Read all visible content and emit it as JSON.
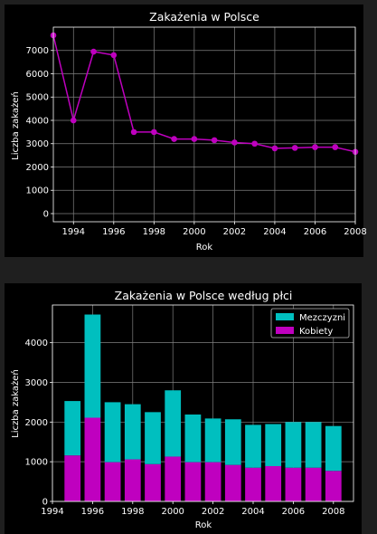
{
  "colors": {
    "page_background": "#1f1f1f",
    "figure_background": "#000000",
    "grid": "#808080",
    "text": "#ffffff",
    "line": "#bf00bf",
    "men": "#00bfbf",
    "women": "#bf00bf"
  },
  "chart_data": [
    {
      "type": "line",
      "title": "Zakażenia w Polsce",
      "xlabel": "Rok",
      "ylabel": "Liczba zakażeń",
      "xlim": [
        1993,
        2008
      ],
      "ylim": [
        -350,
        8000
      ],
      "xticks": [
        1994,
        1996,
        1998,
        2000,
        2002,
        2004,
        2006,
        2008
      ],
      "yticks": [
        0,
        1000,
        2000,
        3000,
        4000,
        5000,
        6000,
        7000
      ],
      "grid": true,
      "marker": "circle",
      "series": [
        {
          "x": [
            1993,
            1994,
            1995,
            1996,
            1997,
            1998,
            1999,
            2000,
            2001,
            2002,
            2003,
            2004,
            2005,
            2006,
            2007,
            2008
          ],
          "values": [
            7650,
            4000,
            6950,
            6800,
            3500,
            3500,
            3200,
            3200,
            3150,
            3050,
            3000,
            2800,
            2820,
            2850,
            2850,
            2650
          ]
        }
      ]
    },
    {
      "type": "bar",
      "stacked": true,
      "title": "Zakażenia w Polsce według płci",
      "xlabel": "Rok",
      "ylabel": "Liczba zakażeń",
      "xlim": [
        1994,
        2009
      ],
      "ylim": [
        0,
        4950
      ],
      "xticks": [
        1994,
        1996,
        1998,
        2000,
        2002,
        2004,
        2006,
        2008
      ],
      "yticks": [
        0,
        1000,
        2000,
        3000,
        4000
      ],
      "grid": true,
      "legend": "top-right",
      "legend_entries": [
        "Mezczyzni",
        "Kobiety"
      ],
      "categories": [
        1995,
        1996,
        1997,
        1998,
        1999,
        2000,
        2001,
        2002,
        2003,
        2004,
        2005,
        2006,
        2007,
        2008
      ],
      "series": [
        {
          "name": "Kobiety",
          "values": [
            1160,
            2110,
            990,
            1060,
            940,
            1130,
            990,
            990,
            920,
            850,
            890,
            850,
            850,
            770
          ]
        },
        {
          "name": "Mezczyzni",
          "values": [
            1370,
            2600,
            1510,
            1390,
            1310,
            1670,
            1200,
            1100,
            1150,
            1080,
            1060,
            1150,
            1150,
            1130
          ]
        }
      ]
    }
  ]
}
